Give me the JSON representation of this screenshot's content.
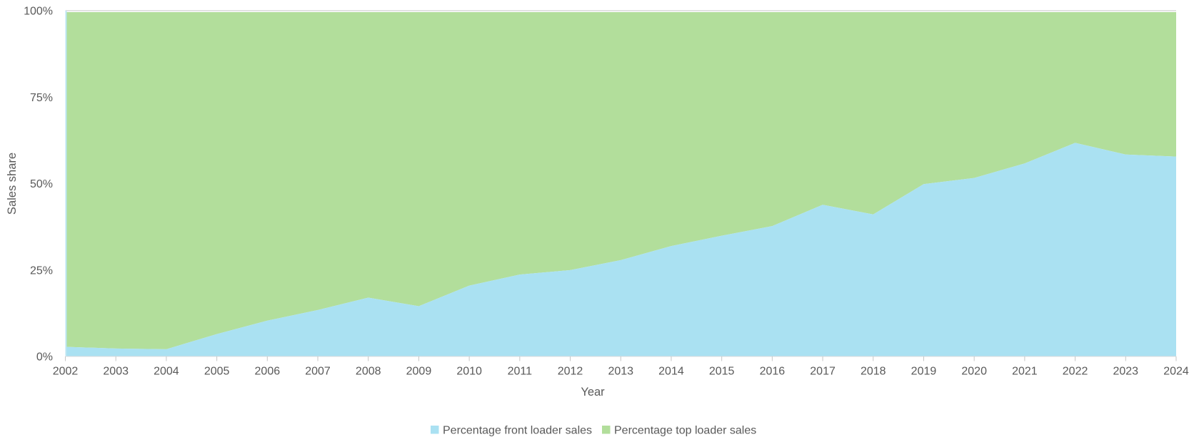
{
  "chart": {
    "y_axis": {
      "title": "Sales share",
      "tick_labels": [
        "100%",
        "75%",
        "50%",
        "25%",
        "0%"
      ],
      "tick_values": [
        100,
        75,
        50,
        25,
        0
      ]
    },
    "x_axis": {
      "title": "Year"
    },
    "legend": [
      {
        "label": "Percentage front loader sales",
        "color": "#aae1f2"
      },
      {
        "label": "Percentage top loader sales",
        "color": "#b2de9b"
      }
    ],
    "colors": {
      "front_loader_area": "#aae1f2",
      "top_loader_area": "#b2de9b",
      "gridline": "#d9d9d9",
      "left_axis_line": "#bce6f3",
      "bottom_axis_line": "#dcdcdc",
      "tick_mark": "#c6c6c6",
      "text": "#595959"
    }
  },
  "chart_data": {
    "type": "area",
    "stacked": true,
    "normalized_percent": true,
    "title": "",
    "xlabel": "Year",
    "ylabel": "Sales share",
    "ylim": [
      0,
      100
    ],
    "grid": false,
    "legend_position": "bottom",
    "x": [
      2002,
      2003,
      2004,
      2005,
      2006,
      2007,
      2008,
      2009,
      2010,
      2011,
      2012,
      2013,
      2014,
      2015,
      2016,
      2017,
      2018,
      2019,
      2020,
      2021,
      2022,
      2023,
      2024
    ],
    "series": [
      {
        "name": "Percentage front loader sales",
        "color": "#aae1f2",
        "values": [
          2.7,
          2.2,
          2,
          6.4,
          10.3,
          13.4,
          17,
          14.5,
          20.5,
          23.7,
          25,
          27.9,
          32,
          35,
          37.8,
          44,
          41.2,
          50,
          51.8,
          56,
          62,
          58.6,
          58
        ]
      },
      {
        "name": "Percentage top loader sales",
        "color": "#b2de9b",
        "values": [
          97.3,
          97.8,
          98,
          93.6,
          89.7,
          86.6,
          83,
          85.5,
          79.5,
          76.3,
          75,
          72.1,
          68,
          65,
          62.2,
          56,
          58.8,
          50,
          48.2,
          44,
          38,
          41.4,
          42
        ]
      }
    ]
  }
}
